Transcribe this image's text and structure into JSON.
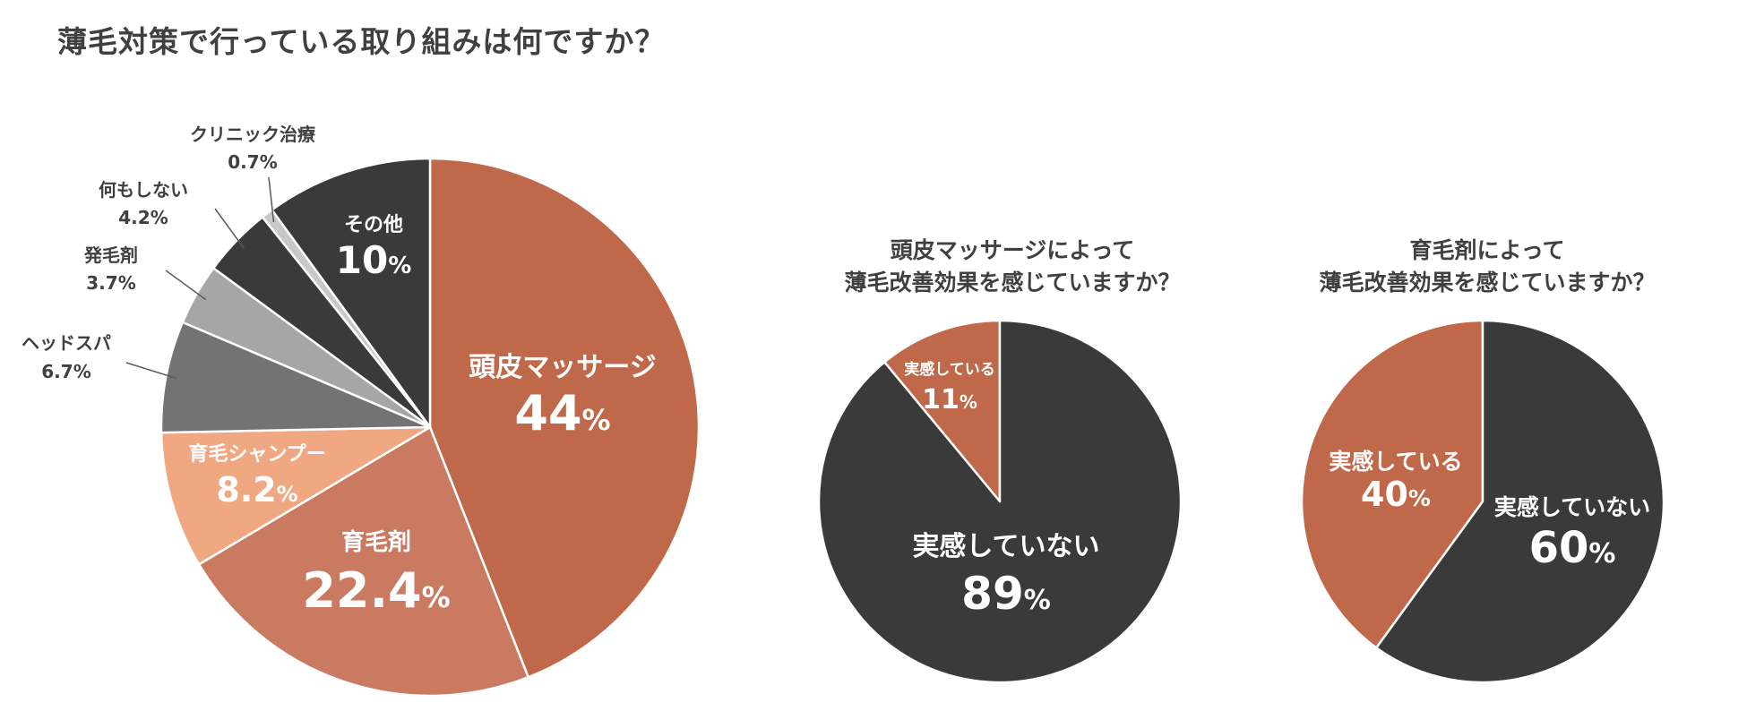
{
  "title": "薄毛対策で行っている取り組みは何ですか？",
  "colors": {
    "rust": "#c0694a",
    "terracotta": "#cb7a62",
    "peach": "#f0a882",
    "gray_mid": "#737373",
    "gray_light": "#a6a6a6",
    "dark": "#3a3a3a",
    "clinic": "#c8c8c8"
  },
  "chart_data": [
    {
      "type": "pie",
      "title": "薄毛対策で行っている取り組みは何ですか？",
      "categories": [
        "頭皮マッサージ",
        "育毛剤",
        "育毛シャンプー",
        "ヘッドスパ",
        "発毛剤",
        "何もしない",
        "クリニック治療",
        "その他"
      ],
      "values": [
        44,
        22.4,
        8.2,
        6.7,
        3.7,
        4.2,
        0.7,
        10
      ],
      "value_labels": [
        "44",
        "22.4",
        "8.2",
        "6.7%",
        "3.7%",
        "4.2%",
        "0.7%",
        "10"
      ],
      "unit": "%",
      "label_position": [
        "inside",
        "inside",
        "inside",
        "outside",
        "outside",
        "outside",
        "outside",
        "inside"
      ]
    },
    {
      "type": "pie",
      "title": "頭皮マッサージによって\n薄毛改善効果を感じていますか？",
      "categories": [
        "実感している",
        "実感していない"
      ],
      "values": [
        11,
        89
      ],
      "value_labels": [
        "11",
        "89"
      ],
      "unit": "%"
    },
    {
      "type": "pie",
      "title": "育毛剤によって\n薄毛改善効果を感じていますか？",
      "categories": [
        "実感している",
        "実感していない"
      ],
      "values": [
        40,
        60
      ],
      "value_labels": [
        "40",
        "60"
      ],
      "unit": "%"
    }
  ]
}
